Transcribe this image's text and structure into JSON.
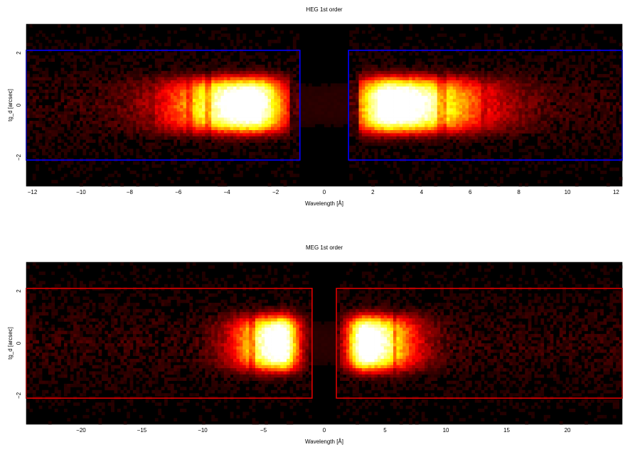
{
  "chart_data": [
    {
      "type": "heatmap",
      "title": "HEG 1st order",
      "xlabel": "Wavelength [Å]",
      "ylabel": "tg_d [arcsec]",
      "xlim": [
        -12.25,
        12.25
      ],
      "ylim": [
        -3.1,
        3.1
      ],
      "xticks": [
        -12,
        -10,
        -8,
        -6,
        -4,
        -2,
        0,
        2,
        4,
        6,
        8,
        10,
        12
      ],
      "yticks": [
        -2,
        0,
        2
      ],
      "colormap": "hot",
      "grid": false,
      "regions": [
        {
          "x": [
            -12.25,
            -1.0
          ],
          "y": [
            -2.1,
            2.1
          ]
        },
        {
          "x": [
            1.0,
            12.25
          ],
          "y": [
            -2.1,
            2.1
          ]
        }
      ],
      "region_color": "#0000ff",
      "emission": [
        {
          "side": "negative",
          "peak_x": -3.0,
          "extent_x": [
            -9.0,
            -1.5
          ],
          "y_halfwidth": 1.0
        },
        {
          "side": "positive",
          "peak_x": 2.7,
          "extent_x": [
            1.5,
            10.0
          ],
          "y_halfwidth": 1.0
        }
      ],
      "absorption_lines_x": [
        -7.1,
        -5.5,
        -4.8,
        4.7,
        4.9,
        6.6
      ]
    },
    {
      "type": "heatmap",
      "title": "MEG 1st order",
      "xlabel": "Wavelength [Å]",
      "ylabel": "tg_d [arcsec]",
      "xlim": [
        -24.5,
        24.5
      ],
      "ylim": [
        -3.1,
        3.1
      ],
      "xticks": [
        -20,
        -15,
        -10,
        -5,
        0,
        5,
        10,
        15,
        20
      ],
      "yticks": [
        -2,
        0,
        2
      ],
      "colormap": "hot",
      "grid": false,
      "regions": [
        {
          "x": [
            -24.5,
            -1.0
          ],
          "y": [
            -2.1,
            2.1
          ]
        },
        {
          "x": [
            1.0,
            24.5
          ],
          "y": [
            -2.1,
            2.1
          ]
        }
      ],
      "region_color": "#dd0000",
      "emission": [
        {
          "side": "negative",
          "peak_x": -3.5,
          "extent_x": [
            -10.0,
            -2.0
          ],
          "y_halfwidth": 1.0
        },
        {
          "side": "positive",
          "peak_x": 3.3,
          "extent_x": [
            2.0,
            10.5
          ],
          "y_halfwidth": 1.0
        }
      ],
      "absorption_lines_x": [
        -6.0,
        5.8
      ]
    }
  ]
}
